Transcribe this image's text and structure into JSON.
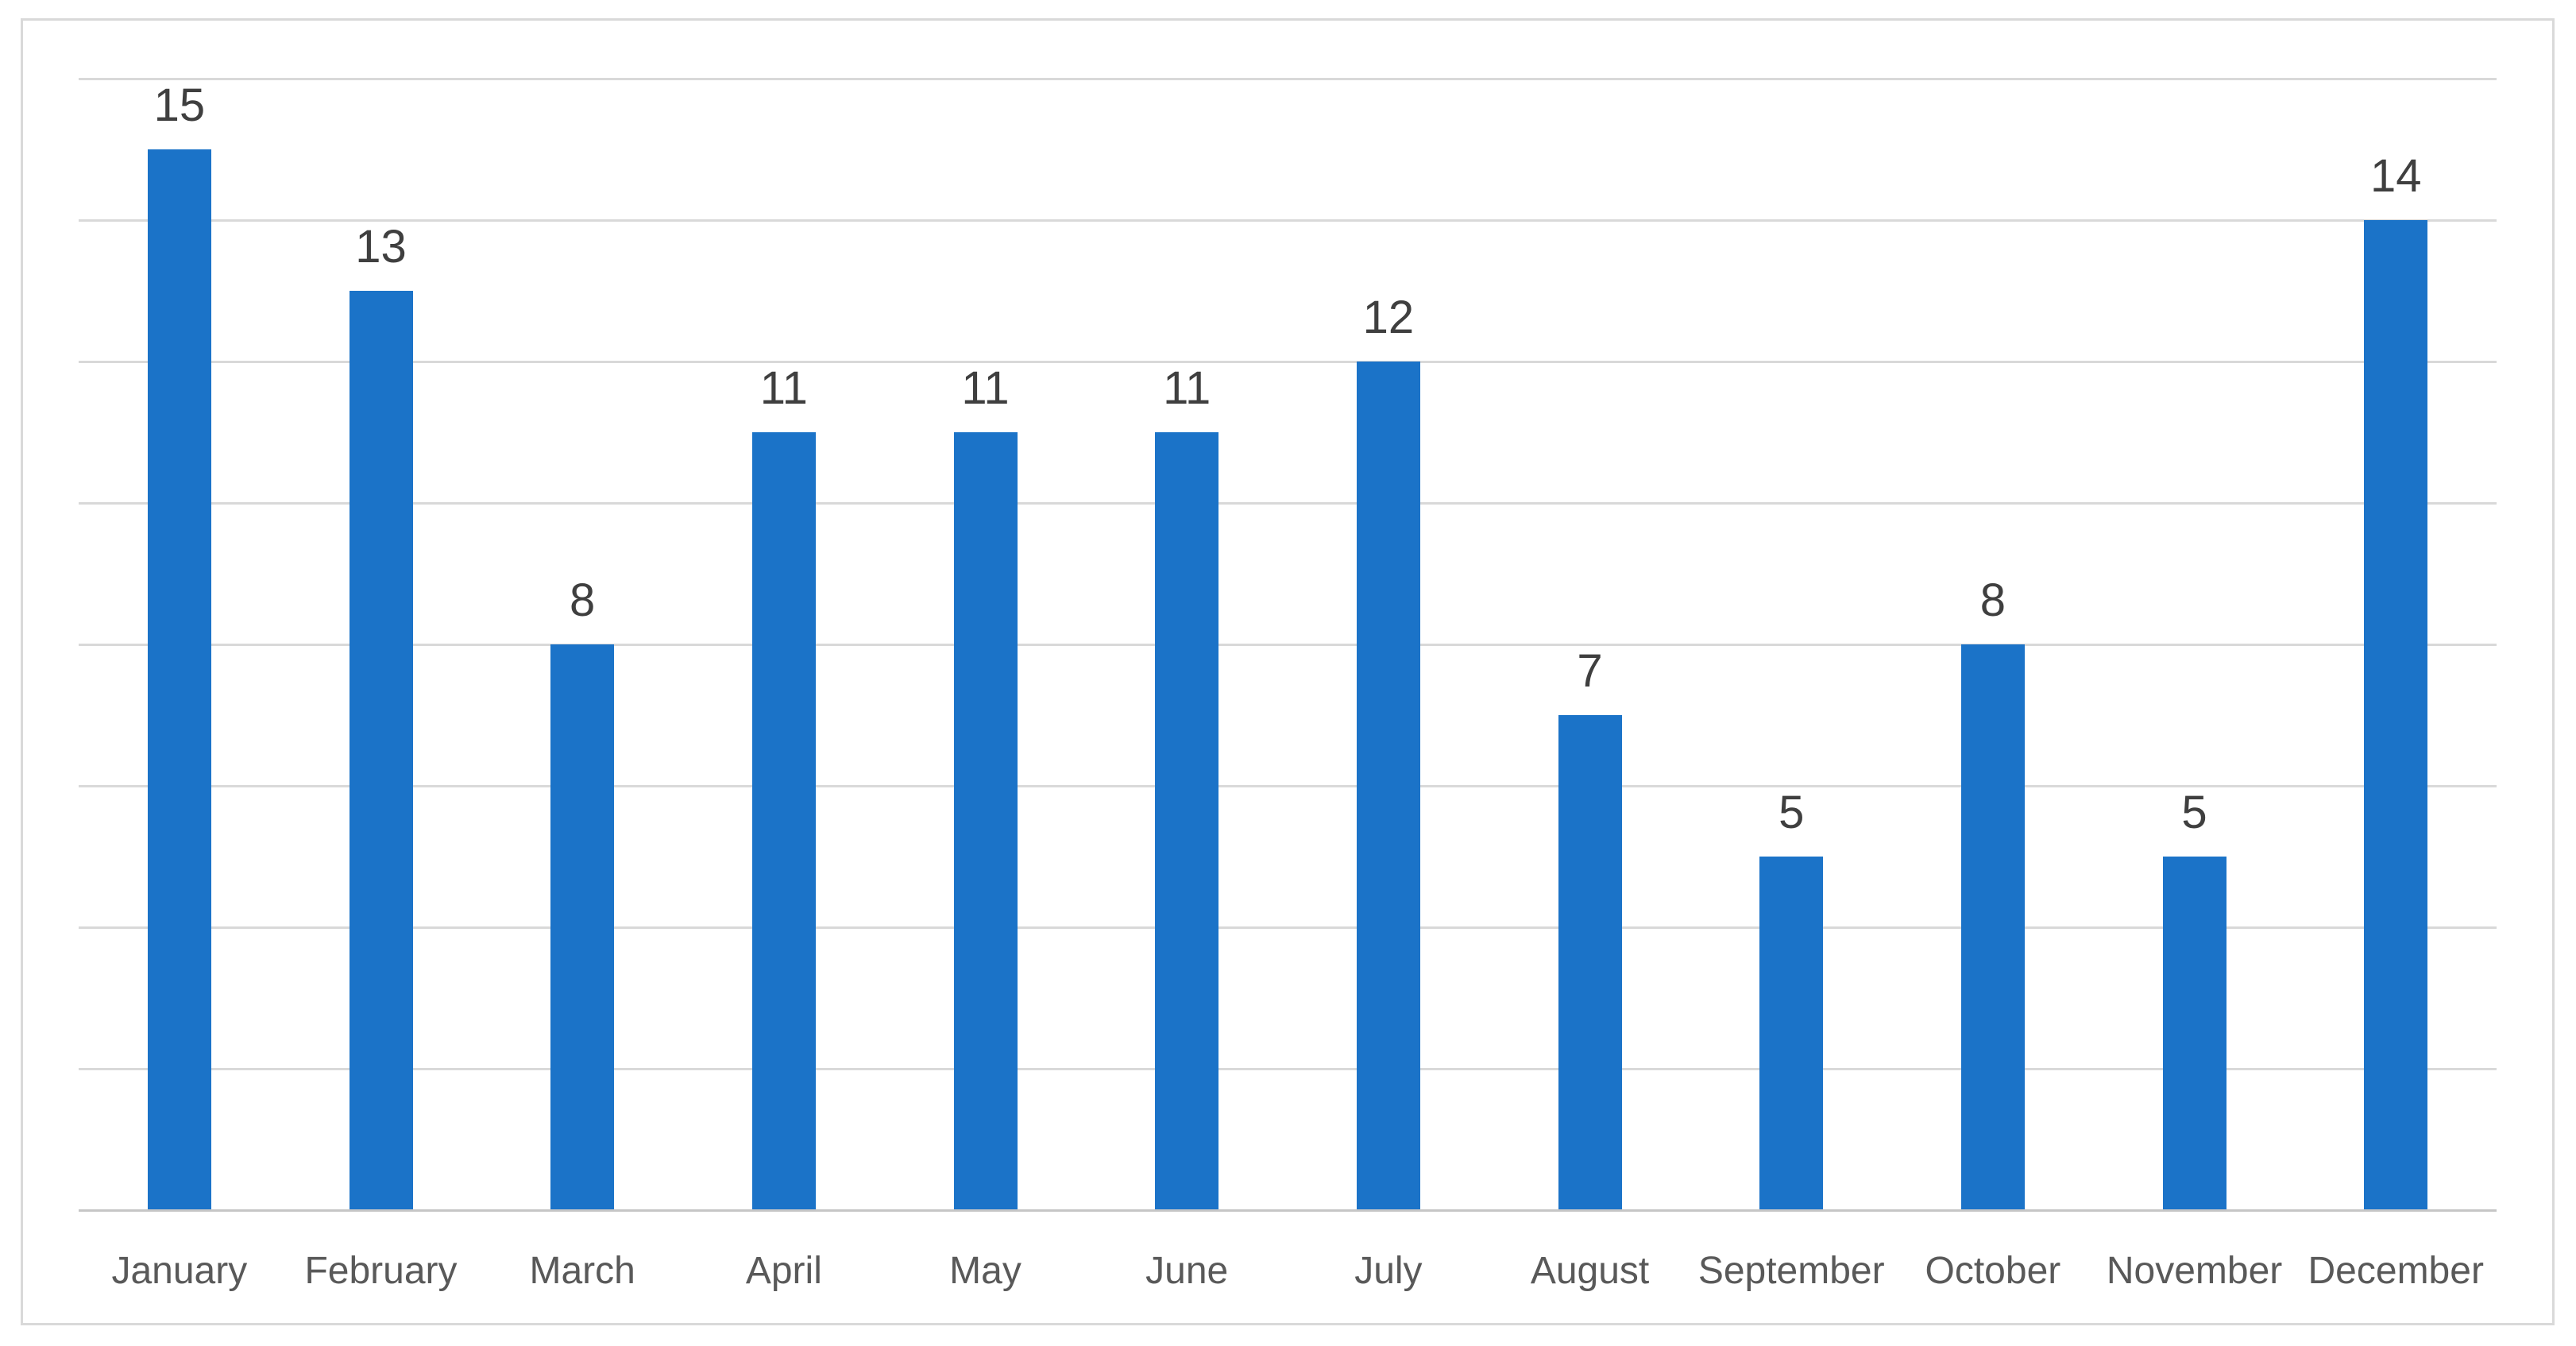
{
  "chart_data": {
    "type": "bar",
    "categories": [
      "January",
      "February",
      "March",
      "April",
      "May",
      "June",
      "July",
      "August",
      "September",
      "October",
      "November",
      "December"
    ],
    "values": [
      15,
      13,
      8,
      11,
      11,
      11,
      12,
      7,
      5,
      8,
      5,
      14
    ],
    "title": "",
    "xlabel": "",
    "ylabel": "",
    "ylim": [
      0,
      16
    ],
    "gridline_step": 2,
    "grid": true,
    "legend": false,
    "data_labels_shown": true,
    "y_axis_tick_labels_shown": false
  },
  "colors": {
    "bar": "#1B73C8",
    "gridline": "#D9D9D9",
    "axis_line": "#C6C6C6",
    "frame_border": "#D9D9D9",
    "data_label": "#3F3F3F",
    "category_label": "#595959",
    "background": "#FFFFFF"
  }
}
